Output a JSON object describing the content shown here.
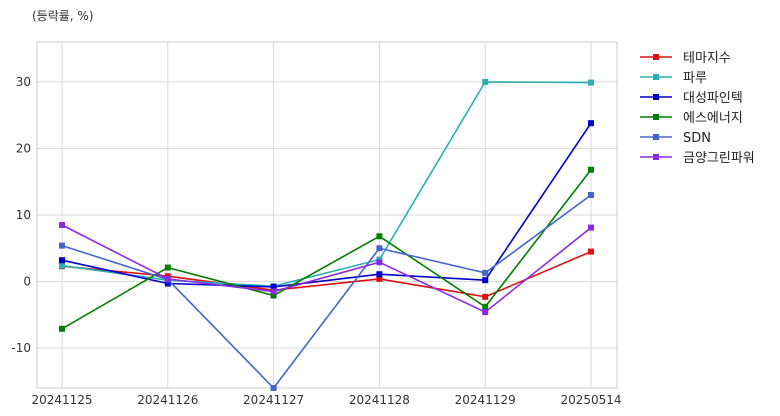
{
  "chart_data": {
    "type": "line",
    "unit_label": "(등락률, %)",
    "categories": [
      "20241125",
      "20241126",
      "20241127",
      "20241128",
      "20241129",
      "20250514"
    ],
    "ylim": [
      -16,
      36
    ],
    "yticks": [
      -10,
      0,
      10,
      20,
      30
    ],
    "grid": true,
    "legend_position": "right-top",
    "series": [
      {
        "name": "테마지수",
        "color": "#dd1111",
        "values": [
          2.3,
          0.8,
          -1.3,
          0.4,
          -2.3,
          4.5
        ]
      },
      {
        "name": "파루",
        "color": "#2ab0b0",
        "values": [
          2.4,
          0.2,
          -0.7,
          3.3,
          30.0,
          29.9
        ]
      },
      {
        "name": "대성파인텍",
        "color": "#0000cc",
        "values": [
          3.2,
          -0.3,
          -0.8,
          1.1,
          0.2,
          23.8
        ]
      },
      {
        "name": "에스에너지",
        "color": "#008000",
        "values": [
          -7.1,
          2.1,
          -2.1,
          6.8,
          -3.8,
          16.8
        ]
      },
      {
        "name": "SDN",
        "color": "#4466cc",
        "values": [
          5.4,
          0.3,
          -16.0,
          5.0,
          1.3,
          13.0
        ]
      },
      {
        "name": "금양그린파워",
        "color": "#8a2be2",
        "values": [
          8.5,
          0.4,
          -1.5,
          2.9,
          -4.6,
          8.1
        ]
      }
    ]
  }
}
